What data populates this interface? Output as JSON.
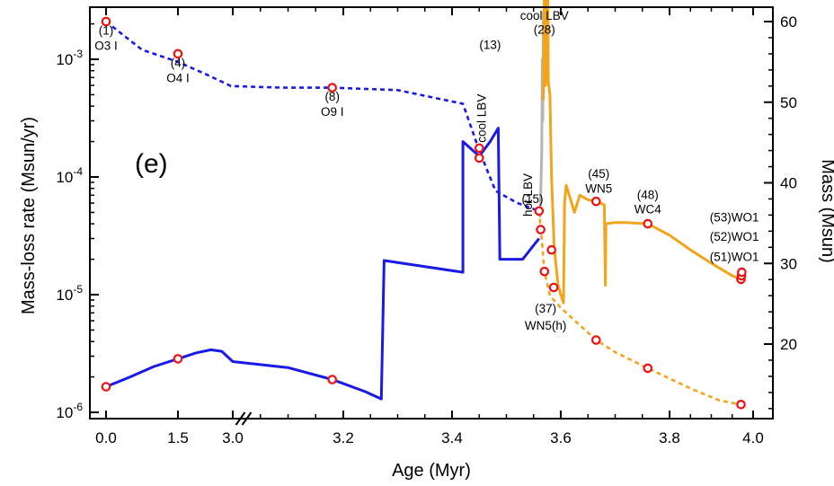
{
  "chart_data": {
    "type": "line",
    "xlabel": "Age (Myr)",
    "ylabel_left": "Mass-loss rate (Msun/yr)",
    "ylabel_right": "Mass (Msun)",
    "panel_label": "(e)",
    "x_broken_axis": true,
    "x_ticks": [
      "0.0",
      "1.5",
      "3.0",
      "3.2",
      "3.4",
      "3.6",
      "3.8",
      "4.0"
    ],
    "x_tick_values": [
      0.0,
      1.5,
      3.0,
      3.2,
      3.4,
      3.6,
      3.8,
      4.0
    ],
    "y_left_scale": "log",
    "y_left_range": [
      1e-06,
      0.0025
    ],
    "y_left_ticks": [
      {
        "base": "10",
        "exp": "-6",
        "value": 1e-06
      },
      {
        "base": "10",
        "exp": "-5",
        "value": 1e-05
      },
      {
        "base": "10",
        "exp": "-4",
        "value": 0.0001
      },
      {
        "base": "10",
        "exp": "-3",
        "value": 0.001
      }
    ],
    "y_right_range": [
      11,
      62
    ],
    "y_right_ticks": [
      "20",
      "30",
      "40",
      "50",
      "60"
    ],
    "colors": {
      "h_phase": "#1a1ae6",
      "he_phase": "#f2a51a",
      "lbv_phase": "#b5b5b5",
      "marker": "#ee1111"
    },
    "series": [
      {
        "role": "mass_loss_rate_h_phase",
        "axis": "left",
        "style": "solid",
        "color": "#1a1ae6",
        "points": [
          [
            0.0,
            1.65e-06
          ],
          [
            0.5,
            2e-06
          ],
          [
            1.0,
            2.45e-06
          ],
          [
            1.5,
            2.85e-06
          ],
          [
            2.0,
            3.2e-06
          ],
          [
            2.4,
            3.4e-06
          ],
          [
            2.7,
            3.3e-06
          ],
          [
            3.0,
            2.7e-06
          ],
          [
            3.1,
            2.4e-06
          ],
          [
            3.18,
            1.9e-06
          ],
          [
            3.24,
            1.5e-06
          ],
          [
            3.27,
            1.3e-06
          ],
          [
            3.275,
            1.95e-05
          ],
          [
            3.42,
            1.55e-05
          ],
          [
            3.42,
            0.0002
          ],
          [
            3.45,
            0.00015
          ],
          [
            3.47,
            0.0002
          ],
          [
            3.485,
            0.00026
          ],
          [
            3.488,
            2e-05
          ],
          [
            3.53,
            2e-05
          ],
          [
            3.56,
            3e-05
          ]
        ]
      },
      {
        "role": "mass_h_phase",
        "axis": "right",
        "style": "dashed",
        "color": "#1a1ae6",
        "points": [
          [
            0.0,
            60.0
          ],
          [
            0.75,
            56.5
          ],
          [
            1.5,
            55.0
          ],
          [
            2.25,
            53.5
          ],
          [
            2.95,
            52.0
          ],
          [
            3.09,
            51.8
          ],
          [
            3.18,
            51.8
          ],
          [
            3.3,
            51.5
          ],
          [
            3.42,
            49.8
          ],
          [
            3.45,
            44.0
          ],
          [
            3.48,
            39.0
          ],
          [
            3.52,
            37.5
          ],
          [
            3.56,
            36.5
          ]
        ]
      },
      {
        "role": "mass_loss_rate_lbv",
        "axis": "left",
        "style": "solid",
        "color": "#b5b5b5",
        "points": [
          [
            3.562,
            4.5e-05
          ],
          [
            3.565,
            0.00016
          ],
          [
            3.566,
            0.001
          ],
          [
            3.567,
            0.0003
          ],
          [
            3.568,
            0.0025
          ],
          [
            3.569,
            0.001
          ],
          [
            3.571,
            0.004
          ]
        ]
      },
      {
        "role": "mass_loss_rate_he_phase",
        "axis": "left",
        "style": "solid",
        "color": "#f2a51a",
        "points": [
          [
            3.568,
            0.00045
          ],
          [
            3.57,
            0.0045
          ],
          [
            3.572,
            0.0006
          ],
          [
            3.575,
            0.0055
          ],
          [
            3.576,
            0.004
          ],
          [
            3.577,
            0.00065
          ],
          [
            3.58,
            0.0005
          ],
          [
            3.583,
            0.0001
          ],
          [
            3.588,
            2.5e-05
          ],
          [
            3.595,
            1.2e-05
          ],
          [
            3.6,
            1e-05
          ],
          [
            3.605,
            8.5e-06
          ],
          [
            3.607,
            6e-05
          ],
          [
            3.61,
            8.5e-05
          ],
          [
            3.62,
            6e-05
          ],
          [
            3.625,
            5e-05
          ],
          [
            3.635,
            7e-05
          ],
          [
            3.65,
            6.4e-05
          ],
          [
            3.665,
            6.2e-05
          ],
          [
            3.68,
            5.8e-05
          ],
          [
            3.682,
            1.2e-05
          ],
          [
            3.683,
            4e-05
          ],
          [
            3.7,
            4.1e-05
          ],
          [
            3.72,
            4.1e-05
          ],
          [
            3.76,
            4e-05
          ],
          [
            3.8,
            3.2e-05
          ],
          [
            3.85,
            2.4e-05
          ],
          [
            3.9,
            1.85e-05
          ],
          [
            3.95,
            1.45e-05
          ],
          [
            3.97,
            1.35e-05
          ],
          [
            3.975,
            1.6e-05
          ]
        ]
      },
      {
        "role": "mass_he_phase",
        "axis": "right",
        "style": "dashed",
        "color": "#f2a51a",
        "points": [
          [
            3.56,
            36.5
          ],
          [
            3.565,
            33.0
          ],
          [
            3.57,
            29.0
          ],
          [
            3.58,
            26.0
          ],
          [
            3.6,
            24.5
          ],
          [
            3.665,
            20.5
          ],
          [
            3.7,
            19.0
          ],
          [
            3.76,
            17.0
          ],
          [
            3.85,
            14.5
          ],
          [
            3.92,
            13.0
          ],
          [
            3.97,
            12.5
          ]
        ]
      }
    ],
    "markers": [
      {
        "x": 0.0,
        "y": 1.65e-06,
        "axis": "left"
      },
      {
        "x": 1.5,
        "y": 2.85e-06,
        "axis": "left"
      },
      {
        "x": 3.18,
        "y": 1.9e-06,
        "axis": "left"
      },
      {
        "x": 3.45,
        "y": 0.000145,
        "axis": "left"
      },
      {
        "x": 3.572,
        "y": 0.005,
        "axis": "left"
      },
      {
        "x": 3.583,
        "y": 2.4e-05,
        "axis": "left"
      },
      {
        "x": 3.587,
        "y": 1.15e-05,
        "axis": "left"
      },
      {
        "x": 3.665,
        "y": 6.2e-05,
        "axis": "left"
      },
      {
        "x": 3.76,
        "y": 4e-05,
        "axis": "left"
      },
      {
        "x": 3.971,
        "y": 1.35e-05,
        "axis": "left"
      },
      {
        "x": 3.972,
        "y": 1.45e-05,
        "axis": "left"
      },
      {
        "x": 3.973,
        "y": 1.55e-05,
        "axis": "left"
      },
      {
        "x": 0.0,
        "y": 60.0,
        "axis": "right"
      },
      {
        "x": 1.5,
        "y": 56.0,
        "axis": "right"
      },
      {
        "x": 3.18,
        "y": 51.8,
        "axis": "right"
      },
      {
        "x": 3.45,
        "y": 44.3,
        "axis": "right"
      },
      {
        "x": 3.56,
        "y": 36.5,
        "axis": "right"
      },
      {
        "x": 3.563,
        "y": 34.2,
        "axis": "right"
      },
      {
        "x": 3.57,
        "y": 29.0,
        "axis": "right"
      },
      {
        "x": 3.665,
        "y": 20.5,
        "axis": "right"
      },
      {
        "x": 3.76,
        "y": 17.0,
        "axis": "right"
      },
      {
        "x": 3.971,
        "y": 12.5,
        "axis": "right"
      }
    ],
    "annotations": [
      {
        "text": "(1)",
        "x": 0.0,
        "y": 58.4,
        "axis": "right"
      },
      {
        "text": "O3 I",
        "x": 0.0,
        "y": 56.5,
        "axis": "right"
      },
      {
        "text": "(4)",
        "x": 1.5,
        "y": 54.4,
        "axis": "right"
      },
      {
        "text": "O4 I",
        "x": 1.5,
        "y": 52.5,
        "axis": "right"
      },
      {
        "text": "(8)",
        "x": 3.18,
        "y": 50.2,
        "axis": "right"
      },
      {
        "text": "O9 I",
        "x": 3.18,
        "y": 48.3,
        "axis": "right"
      },
      {
        "text": "(13)",
        "x": 3.47,
        "y": 56.6,
        "axis": "right"
      },
      {
        "text": "cool LBV",
        "x": 3.462,
        "y": 48.0,
        "axis": "right",
        "rotate": -90
      },
      {
        "text": "hot LBV",
        "x": 3.547,
        "y": 38.5,
        "axis": "right",
        "rotate": -90
      },
      {
        "text": "(15)",
        "x": 3.548,
        "y": 37.5,
        "axis": "right"
      },
      {
        "text": "cool LBV",
        "x": 3.57,
        "y": 60.2,
        "axis": "right"
      },
      {
        "text": "(28)",
        "x": 3.57,
        "y": 58.5,
        "axis": "right"
      },
      {
        "text": "(37)",
        "x": 3.572,
        "y": 23.9,
        "axis": "right"
      },
      {
        "text": "WN5(h)",
        "x": 3.572,
        "y": 21.8,
        "axis": "right"
      },
      {
        "text": "(45)",
        "x": 3.67,
        "y": 40.6,
        "axis": "right"
      },
      {
        "text": "WN5",
        "x": 3.67,
        "y": 38.8,
        "axis": "right"
      },
      {
        "text": "(48)",
        "x": 3.76,
        "y": 38.0,
        "axis": "right"
      },
      {
        "text": "WC4",
        "x": 3.76,
        "y": 36.2,
        "axis": "right"
      },
      {
        "text": "(53)WO1",
        "x": 3.955,
        "y": 35.2,
        "axis": "right"
      },
      {
        "text": "(52)WO1",
        "x": 3.955,
        "y": 32.8,
        "axis": "right"
      },
      {
        "text": "(51)WO1",
        "x": 3.955,
        "y": 30.3,
        "axis": "right"
      }
    ]
  }
}
